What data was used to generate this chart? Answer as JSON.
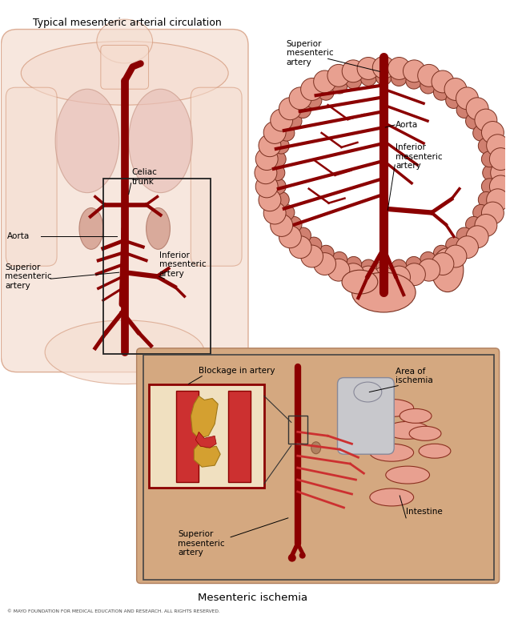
{
  "title_top": "Typical mesenteric arterial circulation",
  "title_bottom": "Mesenteric ischemia",
  "copyright": "© MAYO FOUNDATION FOR MEDICAL EDUCATION AND RESEARCH. ALL RIGHTS RESERVED.",
  "bg_color": "#ffffff",
  "fig_width": 6.32,
  "fig_height": 7.73,
  "body_skin_light": "#f5ddd0",
  "body_skin": "#f0c8b0",
  "body_skin_dark": "#e0a888",
  "body_outline": "#d09070",
  "lung_color": "#e8c0b8",
  "lung_edge": "#c89888",
  "kidney_color": "#d4a090",
  "kidney_edge": "#b07868",
  "artery_dark": "#8b0000",
  "artery_mid": "#aa1010",
  "artery_light": "#cc3030",
  "colon_fill": "#e8a090",
  "colon_edge": "#7a3020",
  "colon_inner": "#d08070",
  "intestine_fill": "#e8a090",
  "intestine_edge": "#8b3020",
  "ischemia_fill": "#c8c8cc",
  "ischemia_edge": "#888898",
  "blockage_bg": "#f0e0c0",
  "blockage_plaque": "#d4a030",
  "blockage_artery": "#cc3030",
  "box_edge": "#444444",
  "torso_bottom": "#d4a880",
  "torso_bottom_edge": "#b08060"
}
